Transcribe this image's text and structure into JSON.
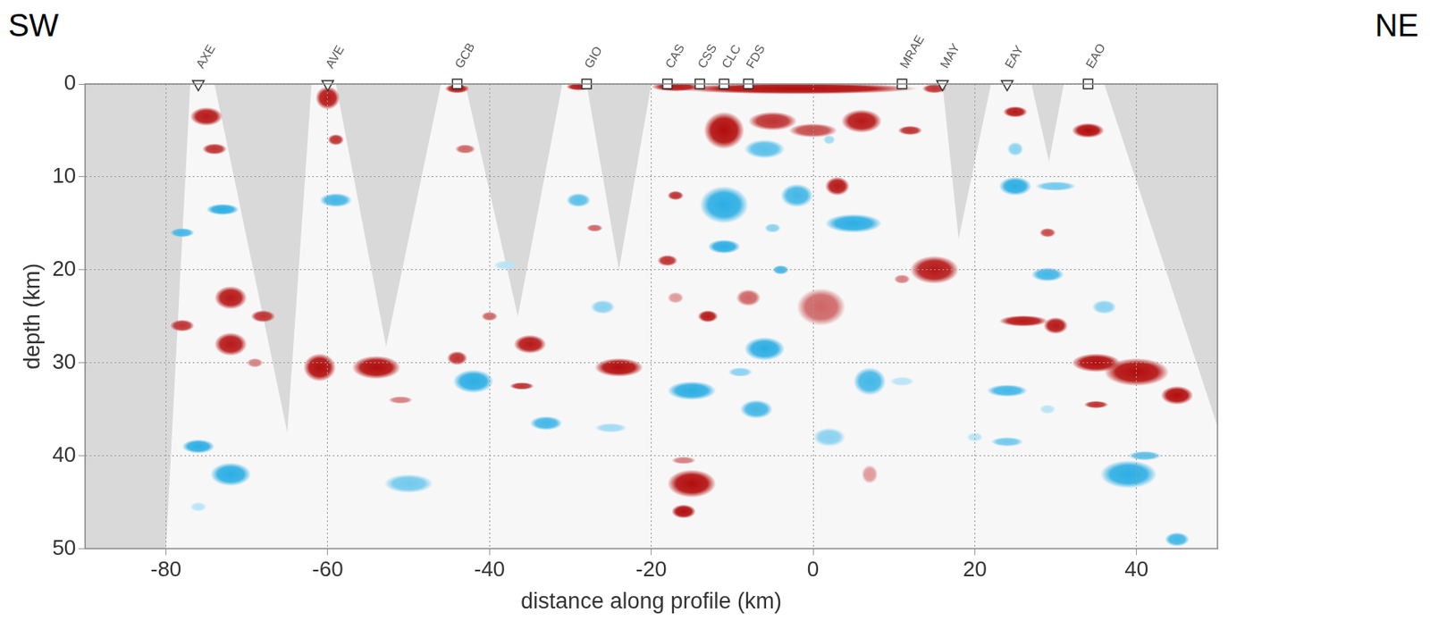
{
  "chart_data": {
    "type": "heatmap",
    "annotations": {
      "left": "SW",
      "right": "NE"
    },
    "x_label": "distance along profile (km)",
    "y_label": "depth (km)",
    "xlim": [
      -90,
      50
    ],
    "ylim": [
      50,
      0
    ],
    "xticks": [
      -80,
      -60,
      -40,
      -20,
      0,
      20,
      40
    ],
    "yticks": [
      0,
      10,
      20,
      30,
      40,
      50
    ],
    "grid": true,
    "stations": [
      {
        "name": "AXE",
        "x": -76,
        "marker": "triangle"
      },
      {
        "name": "AVE",
        "x": -60,
        "marker": "triangle"
      },
      {
        "name": "GCB",
        "x": -44,
        "marker": "square"
      },
      {
        "name": "GIO",
        "x": -28,
        "marker": "square"
      },
      {
        "name": "CAS",
        "x": -18,
        "marker": "square"
      },
      {
        "name": "CSS",
        "x": -14,
        "marker": "square"
      },
      {
        "name": "CLC",
        "x": -11,
        "marker": "square"
      },
      {
        "name": "FDS",
        "x": -8,
        "marker": "square"
      },
      {
        "name": "MRAE",
        "x": 11,
        "marker": "square"
      },
      {
        "name": "MAY",
        "x": 16,
        "marker": "triangle"
      },
      {
        "name": "EAY",
        "x": 24,
        "marker": "triangle"
      },
      {
        "name": "EAO",
        "x": 34,
        "marker": "square"
      }
    ],
    "coverage": [
      [
        [
          -77,
          0
        ],
        [
          -74,
          0
        ],
        [
          -62,
          50
        ],
        [
          -80,
          50
        ]
      ],
      [
        [
          -62,
          0
        ],
        [
          -59,
          0
        ],
        [
          -48,
          50
        ],
        [
          -66,
          50
        ]
      ],
      [
        [
          -46,
          0
        ],
        [
          -43,
          0
        ],
        [
          -30,
          50
        ],
        [
          -58,
          50
        ]
      ],
      [
        [
          -31,
          0
        ],
        [
          -28,
          0
        ],
        [
          -18,
          50
        ],
        [
          -42,
          50
        ]
      ],
      [
        [
          -20,
          0
        ],
        [
          16,
          0
        ],
        [
          22,
          50
        ],
        [
          -30,
          50
        ]
      ],
      [
        [
          22,
          0
        ],
        [
          27,
          0
        ],
        [
          40,
          50
        ],
        [
          10,
          50
        ]
      ],
      [
        [
          31,
          0
        ],
        [
          36,
          0
        ],
        [
          55,
          50
        ],
        [
          20,
          50
        ]
      ]
    ],
    "blobs": [
      {
        "x": -75,
        "depth": 3.5,
        "width": 4,
        "height": 2,
        "amplitude": 0.9
      },
      {
        "x": -74,
        "depth": 7,
        "width": 3,
        "height": 1.2,
        "amplitude": 0.8
      },
      {
        "x": -72,
        "depth": 23,
        "width": 4,
        "height": 2.5,
        "amplitude": 0.9
      },
      {
        "x": -78,
        "depth": 26,
        "width": 3,
        "height": 1.3,
        "amplitude": 0.8
      },
      {
        "x": -68,
        "depth": 25,
        "width": 3,
        "height": 1.3,
        "amplitude": 0.8
      },
      {
        "x": -72,
        "depth": 28,
        "width": 4,
        "height": 2.5,
        "amplitude": 0.9
      },
      {
        "x": -69,
        "depth": 30,
        "width": 2,
        "height": 1,
        "amplitude": 0.5
      },
      {
        "x": -60,
        "depth": 1.5,
        "width": 3,
        "height": 2.5,
        "amplitude": 0.9
      },
      {
        "x": -59,
        "depth": 6,
        "width": 2,
        "height": 1.2,
        "amplitude": 0.8
      },
      {
        "x": -61,
        "depth": 30.5,
        "width": 4,
        "height": 3,
        "amplitude": 0.95
      },
      {
        "x": -54,
        "depth": 30.5,
        "width": 6,
        "height": 2.5,
        "amplitude": 0.95
      },
      {
        "x": -51,
        "depth": 34,
        "width": 3,
        "height": 0.8,
        "amplitude": 0.5
      },
      {
        "x": -44,
        "depth": 0.5,
        "width": 3,
        "height": 1,
        "amplitude": 0.9
      },
      {
        "x": -43,
        "depth": 7,
        "width": 2.5,
        "height": 1,
        "amplitude": 0.6
      },
      {
        "x": -35,
        "depth": 28,
        "width": 4,
        "height": 2,
        "amplitude": 0.9
      },
      {
        "x": -36,
        "depth": 32.5,
        "width": 3,
        "height": 0.8,
        "amplitude": 0.8
      },
      {
        "x": -44,
        "depth": 29.5,
        "width": 2.5,
        "height": 1.5,
        "amplitude": 0.8
      },
      {
        "x": -40,
        "depth": 25,
        "width": 2,
        "height": 1,
        "amplitude": 0.6
      },
      {
        "x": -29,
        "depth": 0.3,
        "width": 3,
        "height": 0.8,
        "amplitude": 0.9
      },
      {
        "x": -24,
        "depth": 30.5,
        "width": 6,
        "height": 2,
        "amplitude": 0.95
      },
      {
        "x": -27,
        "depth": 15.5,
        "width": 2,
        "height": 0.8,
        "amplitude": 0.6
      },
      {
        "x": -17,
        "depth": 0.3,
        "width": 6,
        "height": 1,
        "amplitude": 0.9
      },
      {
        "x": -2,
        "depth": 0.5,
        "width": 30,
        "height": 1.2,
        "amplitude": 0.95
      },
      {
        "x": -11,
        "depth": 5,
        "width": 5,
        "height": 4,
        "amplitude": 0.95
      },
      {
        "x": -5,
        "depth": 4,
        "width": 6,
        "height": 2,
        "amplitude": 0.8
      },
      {
        "x": 0,
        "depth": 5,
        "width": 6,
        "height": 1.5,
        "amplitude": 0.7
      },
      {
        "x": 6,
        "depth": 4,
        "width": 5,
        "height": 2.5,
        "amplitude": 0.9
      },
      {
        "x": 12,
        "depth": 5,
        "width": 3,
        "height": 1,
        "amplitude": 0.8
      },
      {
        "x": 15,
        "depth": 0.5,
        "width": 3,
        "height": 1,
        "amplitude": 0.8
      },
      {
        "x": -17,
        "depth": 12,
        "width": 2,
        "height": 1,
        "amplitude": 0.8
      },
      {
        "x": -18,
        "depth": 19,
        "width": 2.5,
        "height": 1.2,
        "amplitude": 0.8
      },
      {
        "x": -17,
        "depth": 23,
        "width": 2,
        "height": 1.2,
        "amplitude": 0.4
      },
      {
        "x": -13,
        "depth": 25,
        "width": 2.5,
        "height": 1.3,
        "amplitude": 0.9
      },
      {
        "x": -8,
        "depth": 23,
        "width": 3,
        "height": 1.8,
        "amplitude": 0.6
      },
      {
        "x": 1,
        "depth": 24,
        "width": 6,
        "height": 4,
        "amplitude": 0.6
      },
      {
        "x": 3,
        "depth": 11,
        "width": 3,
        "height": 2,
        "amplitude": 0.9
      },
      {
        "x": 15,
        "depth": 20,
        "width": 6,
        "height": 3,
        "amplitude": 0.9
      },
      {
        "x": 11,
        "depth": 21,
        "width": 2,
        "height": 1,
        "amplitude": 0.5
      },
      {
        "x": 7,
        "depth": 42,
        "width": 2,
        "height": 2,
        "amplitude": 0.4
      },
      {
        "x": -15,
        "depth": 43,
        "width": 6,
        "height": 3,
        "amplitude": 0.95
      },
      {
        "x": -16,
        "depth": 46,
        "width": 3,
        "height": 1.5,
        "amplitude": 0.95
      },
      {
        "x": -16,
        "depth": 40.5,
        "width": 3,
        "height": 0.8,
        "amplitude": 0.5
      },
      {
        "x": 25,
        "depth": 3,
        "width": 3,
        "height": 1.2,
        "amplitude": 0.9
      },
      {
        "x": 26,
        "depth": 25.5,
        "width": 6,
        "height": 1.2,
        "amplitude": 0.9
      },
      {
        "x": 30,
        "depth": 26,
        "width": 3,
        "height": 1.8,
        "amplitude": 0.9
      },
      {
        "x": 29,
        "depth": 16,
        "width": 2,
        "height": 1,
        "amplitude": 0.7
      },
      {
        "x": 34,
        "depth": 5,
        "width": 4,
        "height": 1.6,
        "amplitude": 0.95
      },
      {
        "x": 35,
        "depth": 30,
        "width": 6,
        "height": 2,
        "amplitude": 0.95
      },
      {
        "x": 40,
        "depth": 31,
        "width": 8,
        "height": 3,
        "amplitude": 0.95
      },
      {
        "x": 45,
        "depth": 33.5,
        "width": 4,
        "height": 2,
        "amplitude": 0.95
      },
      {
        "x": 35,
        "depth": 34.5,
        "width": 3,
        "height": 0.8,
        "amplitude": 0.8
      },
      {
        "x": -76,
        "depth": 39,
        "width": 4,
        "height": 1.5,
        "amplitude": -0.9
      },
      {
        "x": -72,
        "depth": 42,
        "width": 5,
        "height": 2.5,
        "amplitude": -0.9
      },
      {
        "x": -73,
        "depth": 13.5,
        "width": 4,
        "height": 1.2,
        "amplitude": -0.9
      },
      {
        "x": -78,
        "depth": 16,
        "width": 3,
        "height": 1,
        "amplitude": -0.8
      },
      {
        "x": -76,
        "depth": 45.5,
        "width": 2,
        "height": 1,
        "amplitude": -0.3
      },
      {
        "x": -59,
        "depth": 12.5,
        "width": 4,
        "height": 1.5,
        "amplitude": -0.8
      },
      {
        "x": -50,
        "depth": 43,
        "width": 6,
        "height": 2,
        "amplitude": -0.6
      },
      {
        "x": -42,
        "depth": 32,
        "width": 5,
        "height": 2.5,
        "amplitude": -0.9
      },
      {
        "x": -38,
        "depth": 19.5,
        "width": 3,
        "height": 1,
        "amplitude": -0.3
      },
      {
        "x": -29,
        "depth": 12.5,
        "width": 3,
        "height": 1.5,
        "amplitude": -0.7
      },
      {
        "x": -33,
        "depth": 36.5,
        "width": 4,
        "height": 1.5,
        "amplitude": -0.8
      },
      {
        "x": -26,
        "depth": 24,
        "width": 3,
        "height": 1.5,
        "amplitude": -0.5
      },
      {
        "x": -25,
        "depth": 37,
        "width": 4,
        "height": 1,
        "amplitude": -0.4
      },
      {
        "x": -15,
        "depth": 33,
        "width": 6,
        "height": 2,
        "amplitude": -0.9
      },
      {
        "x": -11,
        "depth": 13,
        "width": 6,
        "height": 4,
        "amplitude": -0.9
      },
      {
        "x": -11,
        "depth": 17.5,
        "width": 4,
        "height": 1.5,
        "amplitude": -0.9
      },
      {
        "x": -6,
        "depth": 7,
        "width": 5,
        "height": 2,
        "amplitude": -0.7
      },
      {
        "x": -6,
        "depth": 28.5,
        "width": 5,
        "height": 2.5,
        "amplitude": -0.9
      },
      {
        "x": -7,
        "depth": 35,
        "width": 4,
        "height": 2,
        "amplitude": -0.8
      },
      {
        "x": -9,
        "depth": 31,
        "width": 3,
        "height": 1,
        "amplitude": -0.5
      },
      {
        "x": -4,
        "depth": 20,
        "width": 2,
        "height": 1,
        "amplitude": -0.8
      },
      {
        "x": -5,
        "depth": 15.5,
        "width": 2,
        "height": 1,
        "amplitude": -0.5
      },
      {
        "x": -2,
        "depth": 12,
        "width": 4,
        "height": 2.5,
        "amplitude": -0.8
      },
      {
        "x": 5,
        "depth": 15,
        "width": 7,
        "height": 2,
        "amplitude": -0.9
      },
      {
        "x": 2,
        "depth": 6,
        "width": 1.5,
        "height": 1,
        "amplitude": -0.4
      },
      {
        "x": 7,
        "depth": 32,
        "width": 4,
        "height": 3,
        "amplitude": -0.8
      },
      {
        "x": 2,
        "depth": 38,
        "width": 4,
        "height": 2,
        "amplitude": -0.5
      },
      {
        "x": 11,
        "depth": 32,
        "width": 3,
        "height": 1,
        "amplitude": -0.3
      },
      {
        "x": 25,
        "depth": 11,
        "width": 4,
        "height": 2,
        "amplitude": -0.9
      },
      {
        "x": 24,
        "depth": 33,
        "width": 5,
        "height": 1.3,
        "amplitude": -0.8
      },
      {
        "x": 24,
        "depth": 38.5,
        "width": 4,
        "height": 1,
        "amplitude": -0.6
      },
      {
        "x": 30,
        "depth": 11,
        "width": 5,
        "height": 1,
        "amplitude": -0.6
      },
      {
        "x": 29,
        "depth": 20.5,
        "width": 4,
        "height": 1.5,
        "amplitude": -0.8
      },
      {
        "x": 25,
        "depth": 7,
        "width": 2,
        "height": 1.5,
        "amplitude": -0.5
      },
      {
        "x": 29,
        "depth": 35,
        "width": 2,
        "height": 1,
        "amplitude": -0.3
      },
      {
        "x": 39,
        "depth": 42,
        "width": 7,
        "height": 3,
        "amplitude": -0.9
      },
      {
        "x": 36,
        "depth": 24,
        "width": 3,
        "height": 1.5,
        "amplitude": -0.5
      },
      {
        "x": 41,
        "depth": 40,
        "width": 4,
        "height": 1,
        "amplitude": -0.7
      },
      {
        "x": 45,
        "depth": 49,
        "width": 3,
        "height": 1.5,
        "amplitude": -0.8
      },
      {
        "x": 20,
        "depth": 38,
        "width": 2,
        "height": 1,
        "amplitude": -0.3
      }
    ]
  }
}
